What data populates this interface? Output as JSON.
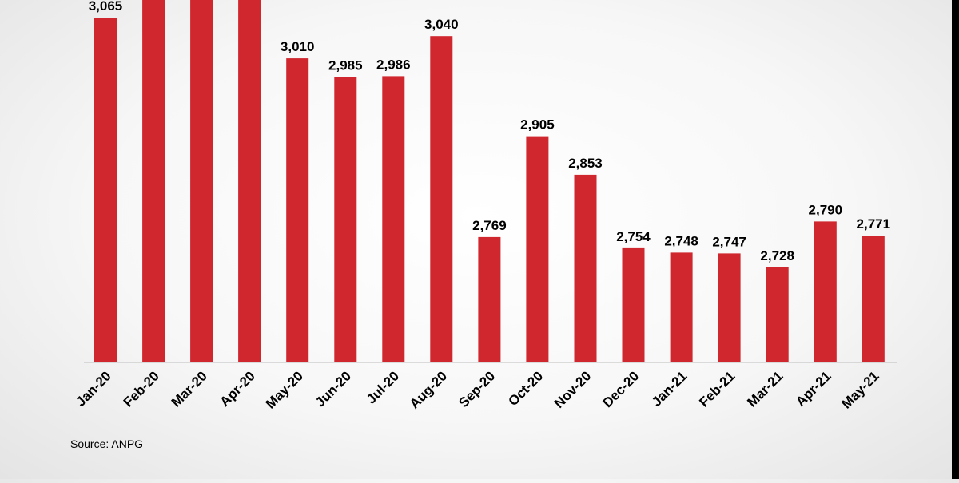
{
  "chart_data": {
    "type": "bar",
    "categories": [
      "Jan-20",
      "Feb-20",
      "Mar-20",
      "Apr-20",
      "May-20",
      "Jun-20",
      "Jul-20",
      "Aug-20",
      "Sep-20",
      "Oct-20",
      "Nov-20",
      "Dec-20",
      "Jan-21",
      "Feb-21",
      "Mar-21",
      "Apr-21",
      "May-21"
    ],
    "values": [
      3065,
      null,
      null,
      null,
      3010,
      2985,
      2986,
      3040,
      2769,
      2905,
      2853,
      2754,
      2748,
      2747,
      2728,
      2790,
      2771
    ],
    "value_labels": [
      "3,065",
      "",
      "",
      "",
      "3,010",
      "2,985",
      "2,986",
      "3,040",
      "2,769",
      "2,905",
      "2,853",
      "2,754",
      "2,748",
      "2,747",
      "2,728",
      "2,790",
      "2,771"
    ],
    "title": "",
    "xlabel": "",
    "ylabel": "",
    "grid": false,
    "legend": "none",
    "bar_color": "#d0262d",
    "source": "Source: ANPG"
  }
}
